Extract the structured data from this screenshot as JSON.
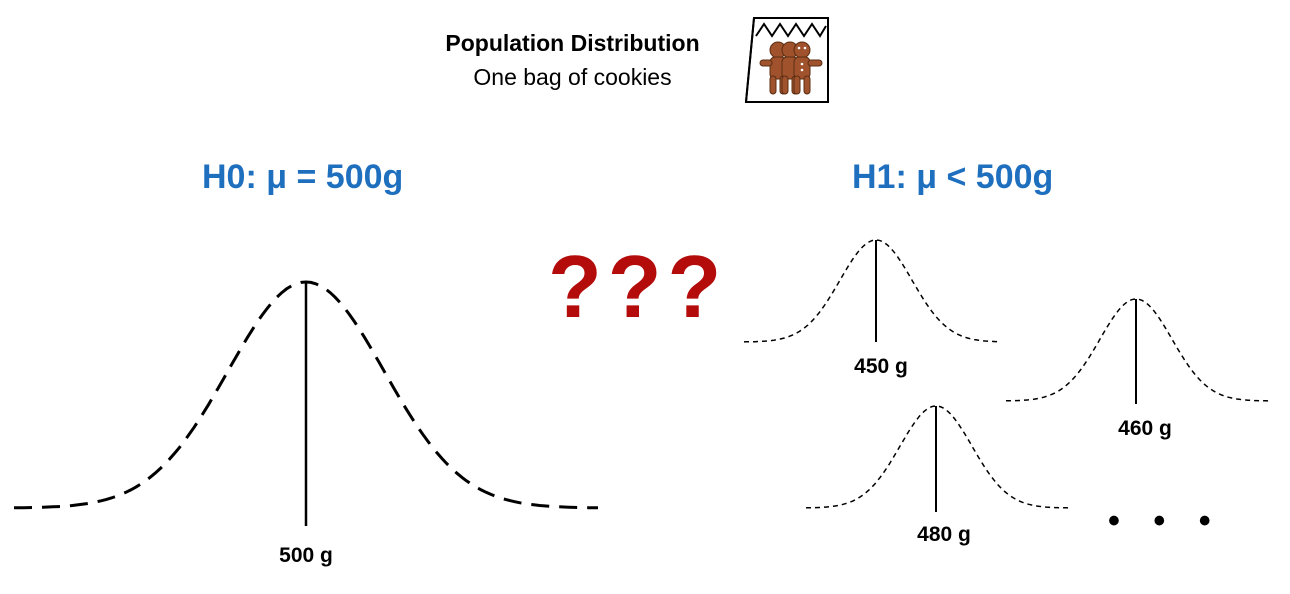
{
  "header": {
    "title": "Population Distribution",
    "subtitle": "One bag of cookies",
    "icon": "cookie-bag-icon"
  },
  "null_hypothesis": {
    "label": "H0: μ = 500g",
    "mean_label": "500 g",
    "mean": 500
  },
  "alternative_hypothesis": {
    "label": "H1: μ < 500g",
    "examples": [
      {
        "mean": 450,
        "label": "450 g"
      },
      {
        "mean": 460,
        "label": "460 g"
      },
      {
        "mean": 480,
        "label": "480 g"
      }
    ],
    "continuation": "• • •"
  },
  "question_marks": "???",
  "colors": {
    "hypothesis": "#1f6fbf",
    "question": "#b40b0b",
    "cookie": "#a0522d"
  }
}
